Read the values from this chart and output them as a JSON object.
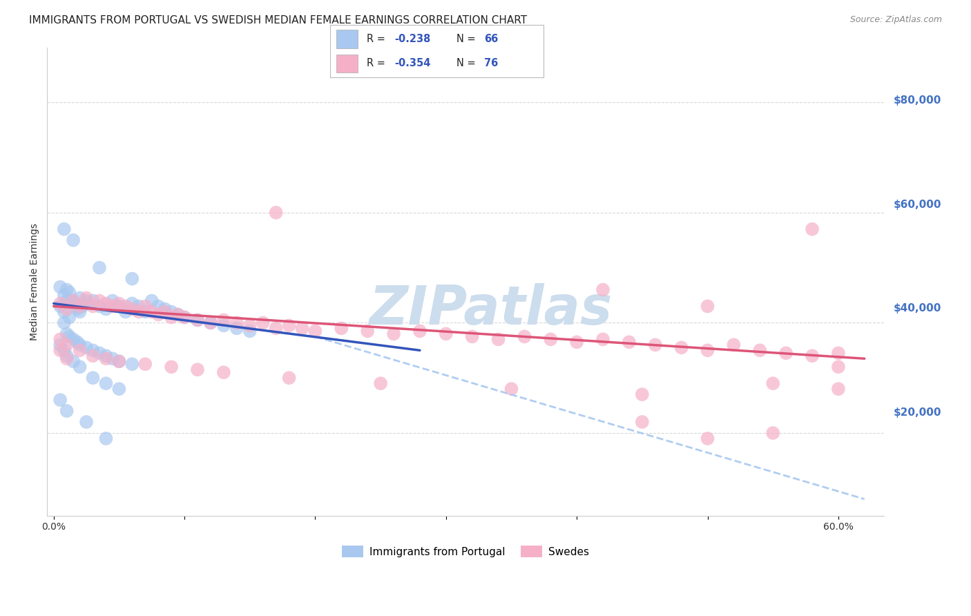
{
  "title": "IMMIGRANTS FROM PORTUGAL VS SWEDISH MEDIAN FEMALE EARNINGS CORRELATION CHART",
  "source": "Source: ZipAtlas.com",
  "ylabel": "Median Female Earnings",
  "watermark": "ZIPatlas",
  "legend_blue_r": "R = -0.238",
  "legend_blue_n": "N = 66",
  "legend_pink_r": "R = -0.354",
  "legend_pink_n": "N = 76",
  "blue_scatter": [
    [
      0.005,
      43000
    ],
    [
      0.008,
      42000
    ],
    [
      0.01,
      44000
    ],
    [
      0.012,
      41000
    ],
    [
      0.015,
      43500
    ],
    [
      0.018,
      42500
    ],
    [
      0.02,
      44500
    ],
    [
      0.022,
      43000
    ],
    [
      0.025,
      44000
    ],
    [
      0.008,
      45000
    ],
    [
      0.01,
      46000
    ],
    [
      0.012,
      45500
    ],
    [
      0.015,
      44000
    ],
    [
      0.005,
      46500
    ],
    [
      0.018,
      43000
    ],
    [
      0.02,
      42000
    ],
    [
      0.025,
      43500
    ],
    [
      0.03,
      44000
    ],
    [
      0.035,
      43000
    ],
    [
      0.04,
      42500
    ],
    [
      0.045,
      44000
    ],
    [
      0.05,
      43000
    ],
    [
      0.055,
      42000
    ],
    [
      0.06,
      43500
    ],
    [
      0.065,
      43000
    ],
    [
      0.07,
      42000
    ],
    [
      0.075,
      44000
    ],
    [
      0.08,
      43000
    ],
    [
      0.085,
      42500
    ],
    [
      0.09,
      42000
    ],
    [
      0.095,
      41500
    ],
    [
      0.1,
      41000
    ],
    [
      0.11,
      40500
    ],
    [
      0.12,
      40000
    ],
    [
      0.13,
      39500
    ],
    [
      0.14,
      39000
    ],
    [
      0.15,
      38500
    ],
    [
      0.008,
      40000
    ],
    [
      0.01,
      38000
    ],
    [
      0.012,
      37500
    ],
    [
      0.015,
      37000
    ],
    [
      0.018,
      36500
    ],
    [
      0.02,
      36000
    ],
    [
      0.025,
      35500
    ],
    [
      0.03,
      35000
    ],
    [
      0.035,
      34500
    ],
    [
      0.04,
      34000
    ],
    [
      0.045,
      33500
    ],
    [
      0.05,
      33000
    ],
    [
      0.06,
      32500
    ],
    [
      0.005,
      36000
    ],
    [
      0.008,
      35000
    ],
    [
      0.01,
      34000
    ],
    [
      0.015,
      33000
    ],
    [
      0.02,
      32000
    ],
    [
      0.03,
      30000
    ],
    [
      0.04,
      29000
    ],
    [
      0.05,
      28000
    ],
    [
      0.008,
      57000
    ],
    [
      0.015,
      55000
    ],
    [
      0.035,
      50000
    ],
    [
      0.06,
      48000
    ],
    [
      0.025,
      22000
    ],
    [
      0.04,
      19000
    ],
    [
      0.005,
      26000
    ],
    [
      0.01,
      24000
    ]
  ],
  "pink_scatter": [
    [
      0.005,
      43500
    ],
    [
      0.01,
      42500
    ],
    [
      0.015,
      44000
    ],
    [
      0.02,
      43000
    ],
    [
      0.025,
      44500
    ],
    [
      0.03,
      43000
    ],
    [
      0.035,
      44000
    ],
    [
      0.04,
      43500
    ],
    [
      0.045,
      43000
    ],
    [
      0.05,
      43500
    ],
    [
      0.055,
      43000
    ],
    [
      0.06,
      42500
    ],
    [
      0.065,
      42000
    ],
    [
      0.07,
      43000
    ],
    [
      0.075,
      42000
    ],
    [
      0.08,
      41500
    ],
    [
      0.085,
      42000
    ],
    [
      0.09,
      41000
    ],
    [
      0.095,
      41500
    ],
    [
      0.1,
      41000
    ],
    [
      0.11,
      40500
    ],
    [
      0.12,
      40000
    ],
    [
      0.13,
      40500
    ],
    [
      0.14,
      40000
    ],
    [
      0.15,
      39500
    ],
    [
      0.16,
      40000
    ],
    [
      0.17,
      39000
    ],
    [
      0.18,
      39500
    ],
    [
      0.19,
      39000
    ],
    [
      0.2,
      38500
    ],
    [
      0.22,
      39000
    ],
    [
      0.24,
      38500
    ],
    [
      0.26,
      38000
    ],
    [
      0.28,
      38500
    ],
    [
      0.3,
      38000
    ],
    [
      0.32,
      37500
    ],
    [
      0.34,
      37000
    ],
    [
      0.36,
      37500
    ],
    [
      0.38,
      37000
    ],
    [
      0.4,
      36500
    ],
    [
      0.42,
      37000
    ],
    [
      0.44,
      36500
    ],
    [
      0.46,
      36000
    ],
    [
      0.48,
      35500
    ],
    [
      0.5,
      35000
    ],
    [
      0.52,
      36000
    ],
    [
      0.54,
      35000
    ],
    [
      0.56,
      34500
    ],
    [
      0.58,
      34000
    ],
    [
      0.6,
      34500
    ],
    [
      0.005,
      37000
    ],
    [
      0.01,
      36000
    ],
    [
      0.02,
      35000
    ],
    [
      0.03,
      34000
    ],
    [
      0.04,
      33500
    ],
    [
      0.05,
      33000
    ],
    [
      0.07,
      32500
    ],
    [
      0.09,
      32000
    ],
    [
      0.11,
      31500
    ],
    [
      0.13,
      31000
    ],
    [
      0.18,
      30000
    ],
    [
      0.25,
      29000
    ],
    [
      0.35,
      28000
    ],
    [
      0.45,
      27000
    ],
    [
      0.55,
      29000
    ],
    [
      0.6,
      28000
    ],
    [
      0.17,
      60000
    ],
    [
      0.58,
      57000
    ],
    [
      0.42,
      46000
    ],
    [
      0.5,
      43000
    ],
    [
      0.005,
      35000
    ],
    [
      0.01,
      33500
    ],
    [
      0.45,
      22000
    ],
    [
      0.5,
      19000
    ],
    [
      0.55,
      20000
    ],
    [
      0.6,
      32000
    ]
  ],
  "blue_line": {
    "x": [
      0.0,
      0.28
    ],
    "y": [
      43500,
      35000
    ]
  },
  "blue_dashed": {
    "x": [
      0.2,
      0.62
    ],
    "y": [
      37500,
      8000
    ]
  },
  "pink_line": {
    "x": [
      0.0,
      0.62
    ],
    "y": [
      43000,
      33500
    ]
  },
  "y_right_ticks": [
    0,
    20000,
    40000,
    60000,
    80000
  ],
  "y_right_labels": [
    "",
    "$20,000",
    "$40,000",
    "$60,000",
    "$80,000"
  ],
  "x_ticks": [
    0.0,
    0.1,
    0.2,
    0.3,
    0.4,
    0.5,
    0.6
  ],
  "x_labels": [
    "0.0%",
    "",
    "",
    "",
    "",
    "",
    "60.0%"
  ],
  "ylim": [
    5000,
    90000
  ],
  "xlim": [
    -0.005,
    0.635
  ],
  "background_color": "#ffffff",
  "grid_color": "#d8d8d8",
  "blue_color": "#a8c8f0",
  "pink_color": "#f5b0c8",
  "blue_line_color": "#3355bb",
  "pink_line_color": "#dd5577",
  "right_label_color": "#4472c4",
  "watermark_color": "#ccdded"
}
